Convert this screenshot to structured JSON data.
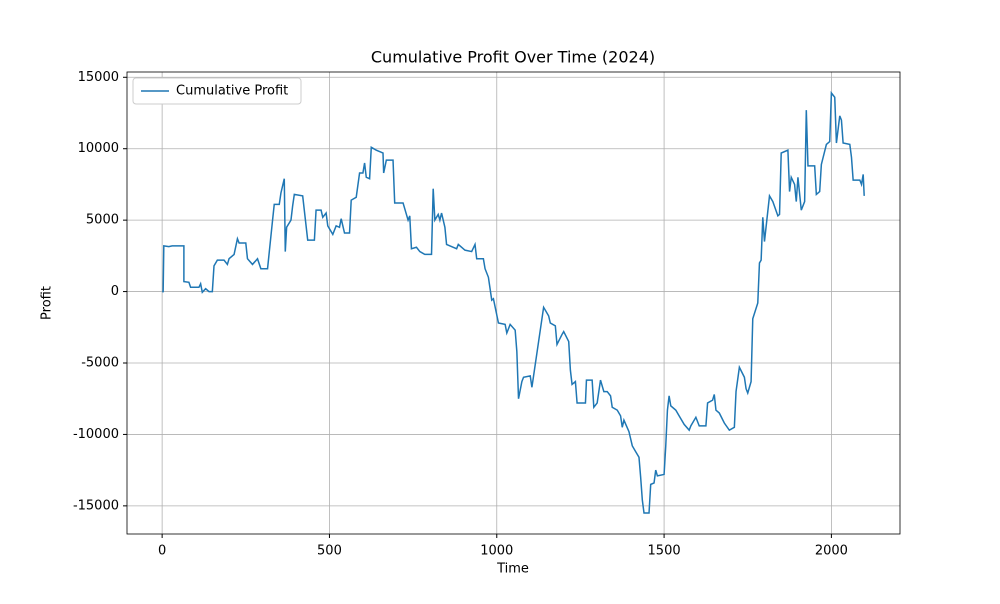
{
  "chart_data": {
    "type": "line",
    "title": "Cumulative Profit Over Time (2024)",
    "xlabel": "Time",
    "ylabel": "Profit",
    "x": [
      0,
      3,
      5,
      20,
      30,
      65,
      65,
      80,
      85,
      110,
      115,
      120,
      130,
      140,
      150,
      155,
      165,
      185,
      195,
      200,
      215,
      225,
      230,
      250,
      255,
      270,
      285,
      295,
      315,
      330,
      335,
      350,
      355,
      365,
      368,
      372,
      385,
      390,
      395,
      420,
      435,
      455,
      460,
      475,
      480,
      490,
      495,
      510,
      520,
      530,
      535,
      545,
      560,
      565,
      580,
      590,
      600,
      605,
      610,
      620,
      625,
      640,
      660,
      662,
      670,
      690,
      695,
      720,
      725,
      735,
      740,
      745,
      760,
      770,
      785,
      805,
      810,
      815,
      825,
      830,
      835,
      845,
      850,
      870,
      880,
      885,
      905,
      925,
      935,
      940,
      960,
      965,
      975,
      985,
      990,
      1005,
      1025,
      1030,
      1040,
      1055,
      1060,
      1065,
      1075,
      1080,
      1100,
      1105,
      1110,
      1125,
      1140,
      1155,
      1160,
      1175,
      1180,
      1195,
      1200,
      1215,
      1220,
      1225,
      1235,
      1240,
      1265,
      1268,
      1285,
      1290,
      1300,
      1310,
      1320,
      1330,
      1340,
      1345,
      1360,
      1370,
      1375,
      1380,
      1395,
      1405,
      1415,
      1425,
      1430,
      1435,
      1440,
      1455,
      1460,
      1470,
      1475,
      1480,
      1500,
      1505,
      1510,
      1515,
      1520,
      1535,
      1545,
      1560,
      1575,
      1580,
      1595,
      1605,
      1625,
      1630,
      1645,
      1650,
      1655,
      1665,
      1680,
      1695,
      1710,
      1715,
      1725,
      1740,
      1745,
      1750,
      1760,
      1765,
      1780,
      1785,
      1790,
      1795,
      1800,
      1815,
      1825,
      1840,
      1845,
      1850,
      1870,
      1875,
      1880,
      1890,
      1895,
      1900,
      1910,
      1920,
      1925,
      1930,
      1950,
      1955,
      1965,
      1970,
      1985,
      1995,
      2000,
      2010,
      2015,
      2025,
      2030,
      2035,
      2055,
      2060,
      2065,
      2085,
      2090,
      2095,
      2098
    ],
    "series": [
      {
        "name": "Cumulative Profit",
        "color": "#1f77b4",
        "values": [
          0,
          0,
          3200,
          3150,
          3200,
          3200,
          700,
          650,
          300,
          300,
          550,
          -50,
          200,
          0,
          0,
          1800,
          2200,
          2200,
          1900,
          2300,
          2600,
          3700,
          3400,
          3400,
          2300,
          1900,
          2300,
          1600,
          1600,
          5000,
          6100,
          6100,
          6900,
          7900,
          2800,
          4500,
          5000,
          6000,
          6800,
          6700,
          3600,
          3600,
          5700,
          5700,
          5200,
          5500,
          4600,
          4000,
          4600,
          4500,
          5100,
          4100,
          4100,
          6400,
          6600,
          8300,
          8300,
          9000,
          8000,
          7900,
          10100,
          9900,
          9700,
          8300,
          9200,
          9200,
          6200,
          6200,
          5800,
          5000,
          5300,
          3000,
          3100,
          2800,
          2600,
          2600,
          7200,
          5000,
          5400,
          5000,
          5500,
          4500,
          3300,
          3100,
          3000,
          3300,
          2900,
          2800,
          3300,
          2300,
          2300,
          1600,
          1000,
          -600,
          -500,
          -2200,
          -2300,
          -2900,
          -2300,
          -2700,
          -4200,
          -7500,
          -6300,
          -6000,
          -5900,
          -6700,
          -5900,
          -3500,
          -1100,
          -1700,
          -2200,
          -2400,
          -3700,
          -3000,
          -2800,
          -3500,
          -5500,
          -6500,
          -6300,
          -7800,
          -7800,
          -6200,
          -6200,
          -8100,
          -7800,
          -6200,
          -7000,
          -7000,
          -7300,
          -8100,
          -8300,
          -8700,
          -9500,
          -9000,
          -9800,
          -10800,
          -11200,
          -11600,
          -13000,
          -14600,
          -15500,
          -15500,
          -13500,
          -13400,
          -12500,
          -12900,
          -12800,
          -10800,
          -8300,
          -7300,
          -8000,
          -8300,
          -8700,
          -9300,
          -9700,
          -9400,
          -8800,
          -9400,
          -9400,
          -7800,
          -7600,
          -7200,
          -8300,
          -8500,
          -9200,
          -9700,
          -9500,
          -7000,
          -5300,
          -6000,
          -6800,
          -7100,
          -6300,
          -1900,
          -800,
          2000,
          2200,
          5200,
          3500,
          6700,
          6300,
          5300,
          5400,
          9700,
          9900,
          7000,
          8000,
          7500,
          6300,
          8000,
          5700,
          6300,
          12700,
          8800,
          8800,
          6800,
          7000,
          8900,
          10300,
          10500,
          13900,
          13600,
          10400,
          12300,
          12000,
          10400,
          10300,
          9400,
          7800,
          7800,
          7500,
          8200,
          6700
        ]
      }
    ],
    "xlim": [
      -105,
      2205
    ],
    "ylim": [
      -16970,
      15370
    ],
    "xticks": [
      0,
      500,
      1000,
      1500,
      2000
    ],
    "yticks": [
      -15000,
      -10000,
      -5000,
      0,
      5000,
      10000,
      15000
    ],
    "grid": true,
    "legend": "upper-left"
  }
}
